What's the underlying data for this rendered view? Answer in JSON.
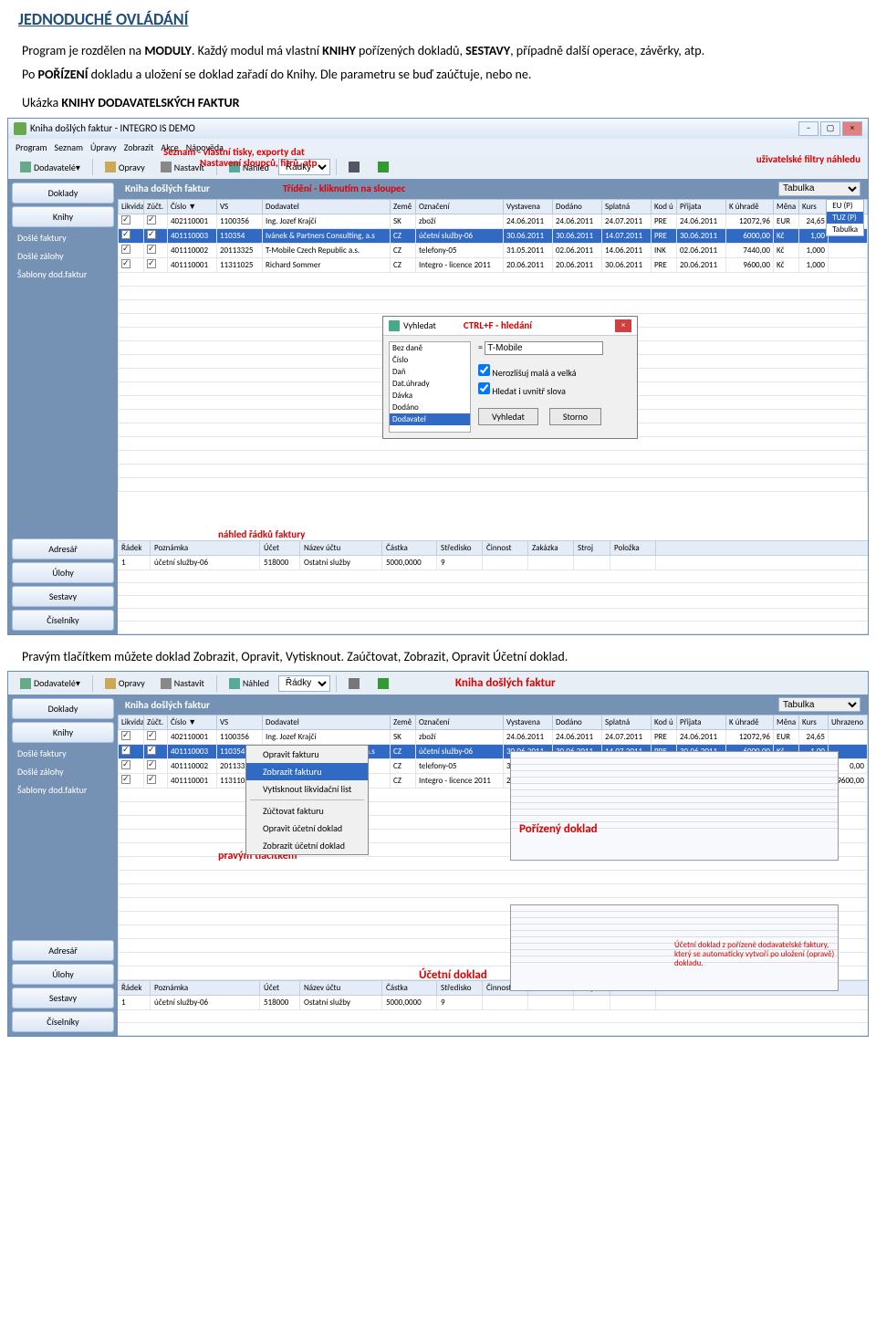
{
  "heading": "JEDNODUCHÉ OVLÁDÁNÍ",
  "para1a": "Program je rozdělen na ",
  "para1b": "MODULY",
  "para1c": ". Každý modul má vlastní ",
  "para1d": "KNIHY",
  "para1e": " pořízených dokladů, ",
  "para1f": "SESTAVY",
  "para1g": ", případně další operace, závěrky, atp.",
  "para2a": "Po ",
  "para2b": "POŘÍZENÍ",
  "para2c": " dokladu a uložení se doklad zařadí do Knihy. Dle parametru se buď zaúčtuje, nebo ne.",
  "para3a": "Ukázka ",
  "para3b": "KNIHY DODAVATELSKÝCH FAKTUR",
  "para4": "Pravým tlačítkem můžete doklad Zobrazit, Opravit, Vytisknout. Zaúčtovat, Zobrazit, Opravit Účetní doklad.",
  "window_title": "Kniha došlých faktur - INTEGRO IS DEMO",
  "menu": [
    "Program",
    "Seznam",
    "Úpravy",
    "Zobrazit",
    "Akce",
    "Nápověda"
  ],
  "toolbar": {
    "drop": "Dodavatelé",
    "opravy": "Opravy",
    "nastavit": "Nastavit",
    "nahled": "Náhled",
    "radky_sel": "Řádky"
  },
  "sidebar": {
    "doklady": "Doklady",
    "knihy": "Knihy",
    "items": [
      "Došlé faktury",
      "Došlé zálohy",
      "Šablony dod.faktur"
    ],
    "adresar": "Adresář",
    "ulohy": "Úlohy",
    "sestavy": "Sestavy",
    "ciselniky": "Číselníky"
  },
  "panel_title": "Kniha došlých faktur",
  "filter_label": "Tabulka",
  "filter_opts": [
    "EU (P)",
    "TUZ (P)",
    "Tabulka"
  ],
  "cols": [
    "Likvidac",
    "Zúčt.",
    "Číslo ▼",
    "VS",
    "Dodavatel",
    "Země",
    "Označení",
    "Vystavena",
    "Dodáno",
    "Splatná",
    "Kod ú",
    "Přijata",
    "K úhradě",
    "Měna",
    "Kurs",
    "Uhrazeno"
  ],
  "rows": [
    {
      "chk": [
        true,
        true
      ],
      "cislo": "402110001",
      "vs": "1100356",
      "dod": "Ing. Jozef Krajčí",
      "zeme": "SK",
      "ozn": "zboží",
      "vyst": "24.06.2011",
      "dano": "24.06.2011",
      "spl": "24.07.2011",
      "kod": "PRE",
      "prij": "24.06.2011",
      "uhr": "12072,96",
      "mena": "EUR",
      "kurs": "24,65"
    },
    {
      "chk": [
        true,
        true
      ],
      "cislo": "401110003",
      "vs": "110354",
      "dod": "Ivánek & Partners Consulting, a.s",
      "zeme": "CZ",
      "ozn": "účetní služby-06",
      "vyst": "30.06.2011",
      "dano": "30.06.2011",
      "spl": "14.07.2011",
      "kod": "PRE",
      "prij": "30.06.2011",
      "uhr": "6000,00",
      "mena": "Kč",
      "kurs": "1,00",
      "sel": true
    },
    {
      "chk": [
        true,
        true
      ],
      "cislo": "401110002",
      "vs": "20113325",
      "dod": "T-Mobile Czech Republic a.s.",
      "zeme": "CZ",
      "ozn": "telefony-05",
      "vyst": "31.05.2011",
      "dano": "02.06.2011",
      "spl": "14.06.2011",
      "kod": "INK",
      "prij": "02.06.2011",
      "uhr": "7440,00",
      "mena": "Kč",
      "kurs": "1,000",
      "uhr2": "0,00"
    },
    {
      "chk": [
        true,
        true
      ],
      "cislo": "401110001",
      "vs": "11311025",
      "dod": "Richard Sommer",
      "zeme": "CZ",
      "ozn": "Integro - licence 2011",
      "vyst": "20.06.2011",
      "dano": "20.06.2011",
      "spl": "30.06.2011",
      "kod": "PRE",
      "prij": "20.06.2011",
      "uhr": "9600,00",
      "mena": "Kč",
      "kurs": "1,000",
      "uhr2": "9600,00"
    }
  ],
  "annot": {
    "seznam": "Seznam - vlastní tisky, exporty dat",
    "nastaveni": "Nastavení sloupců, fitrů, atp",
    "trideni": "Třídění - kliknutím na sloupec",
    "filtry": "uživatelské filtry náhledu",
    "ctrlf": "CTRL+F - hledání",
    "nahled_r": "náhled řádků faktury",
    "porizeny": "Pořízený doklad",
    "ucetni": "Účetní doklad",
    "pravym": "pravým tlačítkem"
  },
  "search": {
    "title": "Vyhledat",
    "fields": [
      "Bez daně",
      "Číslo",
      "Daň",
      "Dat.úhrady",
      "Dávka",
      "Dodáno",
      "Dodavatel"
    ],
    "eq": "=",
    "val": "T-Mobile",
    "cb1": "Nerozlišuj malá a velká",
    "cb2": "Hledat i uvnitř slova",
    "btn_find": "Vyhledat",
    "btn_cancel": "Storno"
  },
  "detail": {
    "cols": [
      "Řádek",
      "Poznámka",
      "Účet",
      "Název účtu",
      "Částka",
      "Středisko",
      "Činnost",
      "Zakázka",
      "Stroj",
      "Položka"
    ],
    "row": [
      "1",
      "účetní služby-06",
      "518000",
      "Ostatní služby",
      "5000,0000",
      "9",
      "",
      "",
      "",
      ""
    ]
  },
  "ctx": [
    "Opravit fakturu",
    "Zobrazit fakturu",
    "Vytisknout likvidační list",
    "Zúčtovat fakturu",
    "Opravit účetní doklad",
    "Zobrazit účetní doklad"
  ],
  "note2": "Účetní doklad z pořízené dodavatelské faktury, který se automaticky vytvoří po uložení (opravě) dokladu."
}
